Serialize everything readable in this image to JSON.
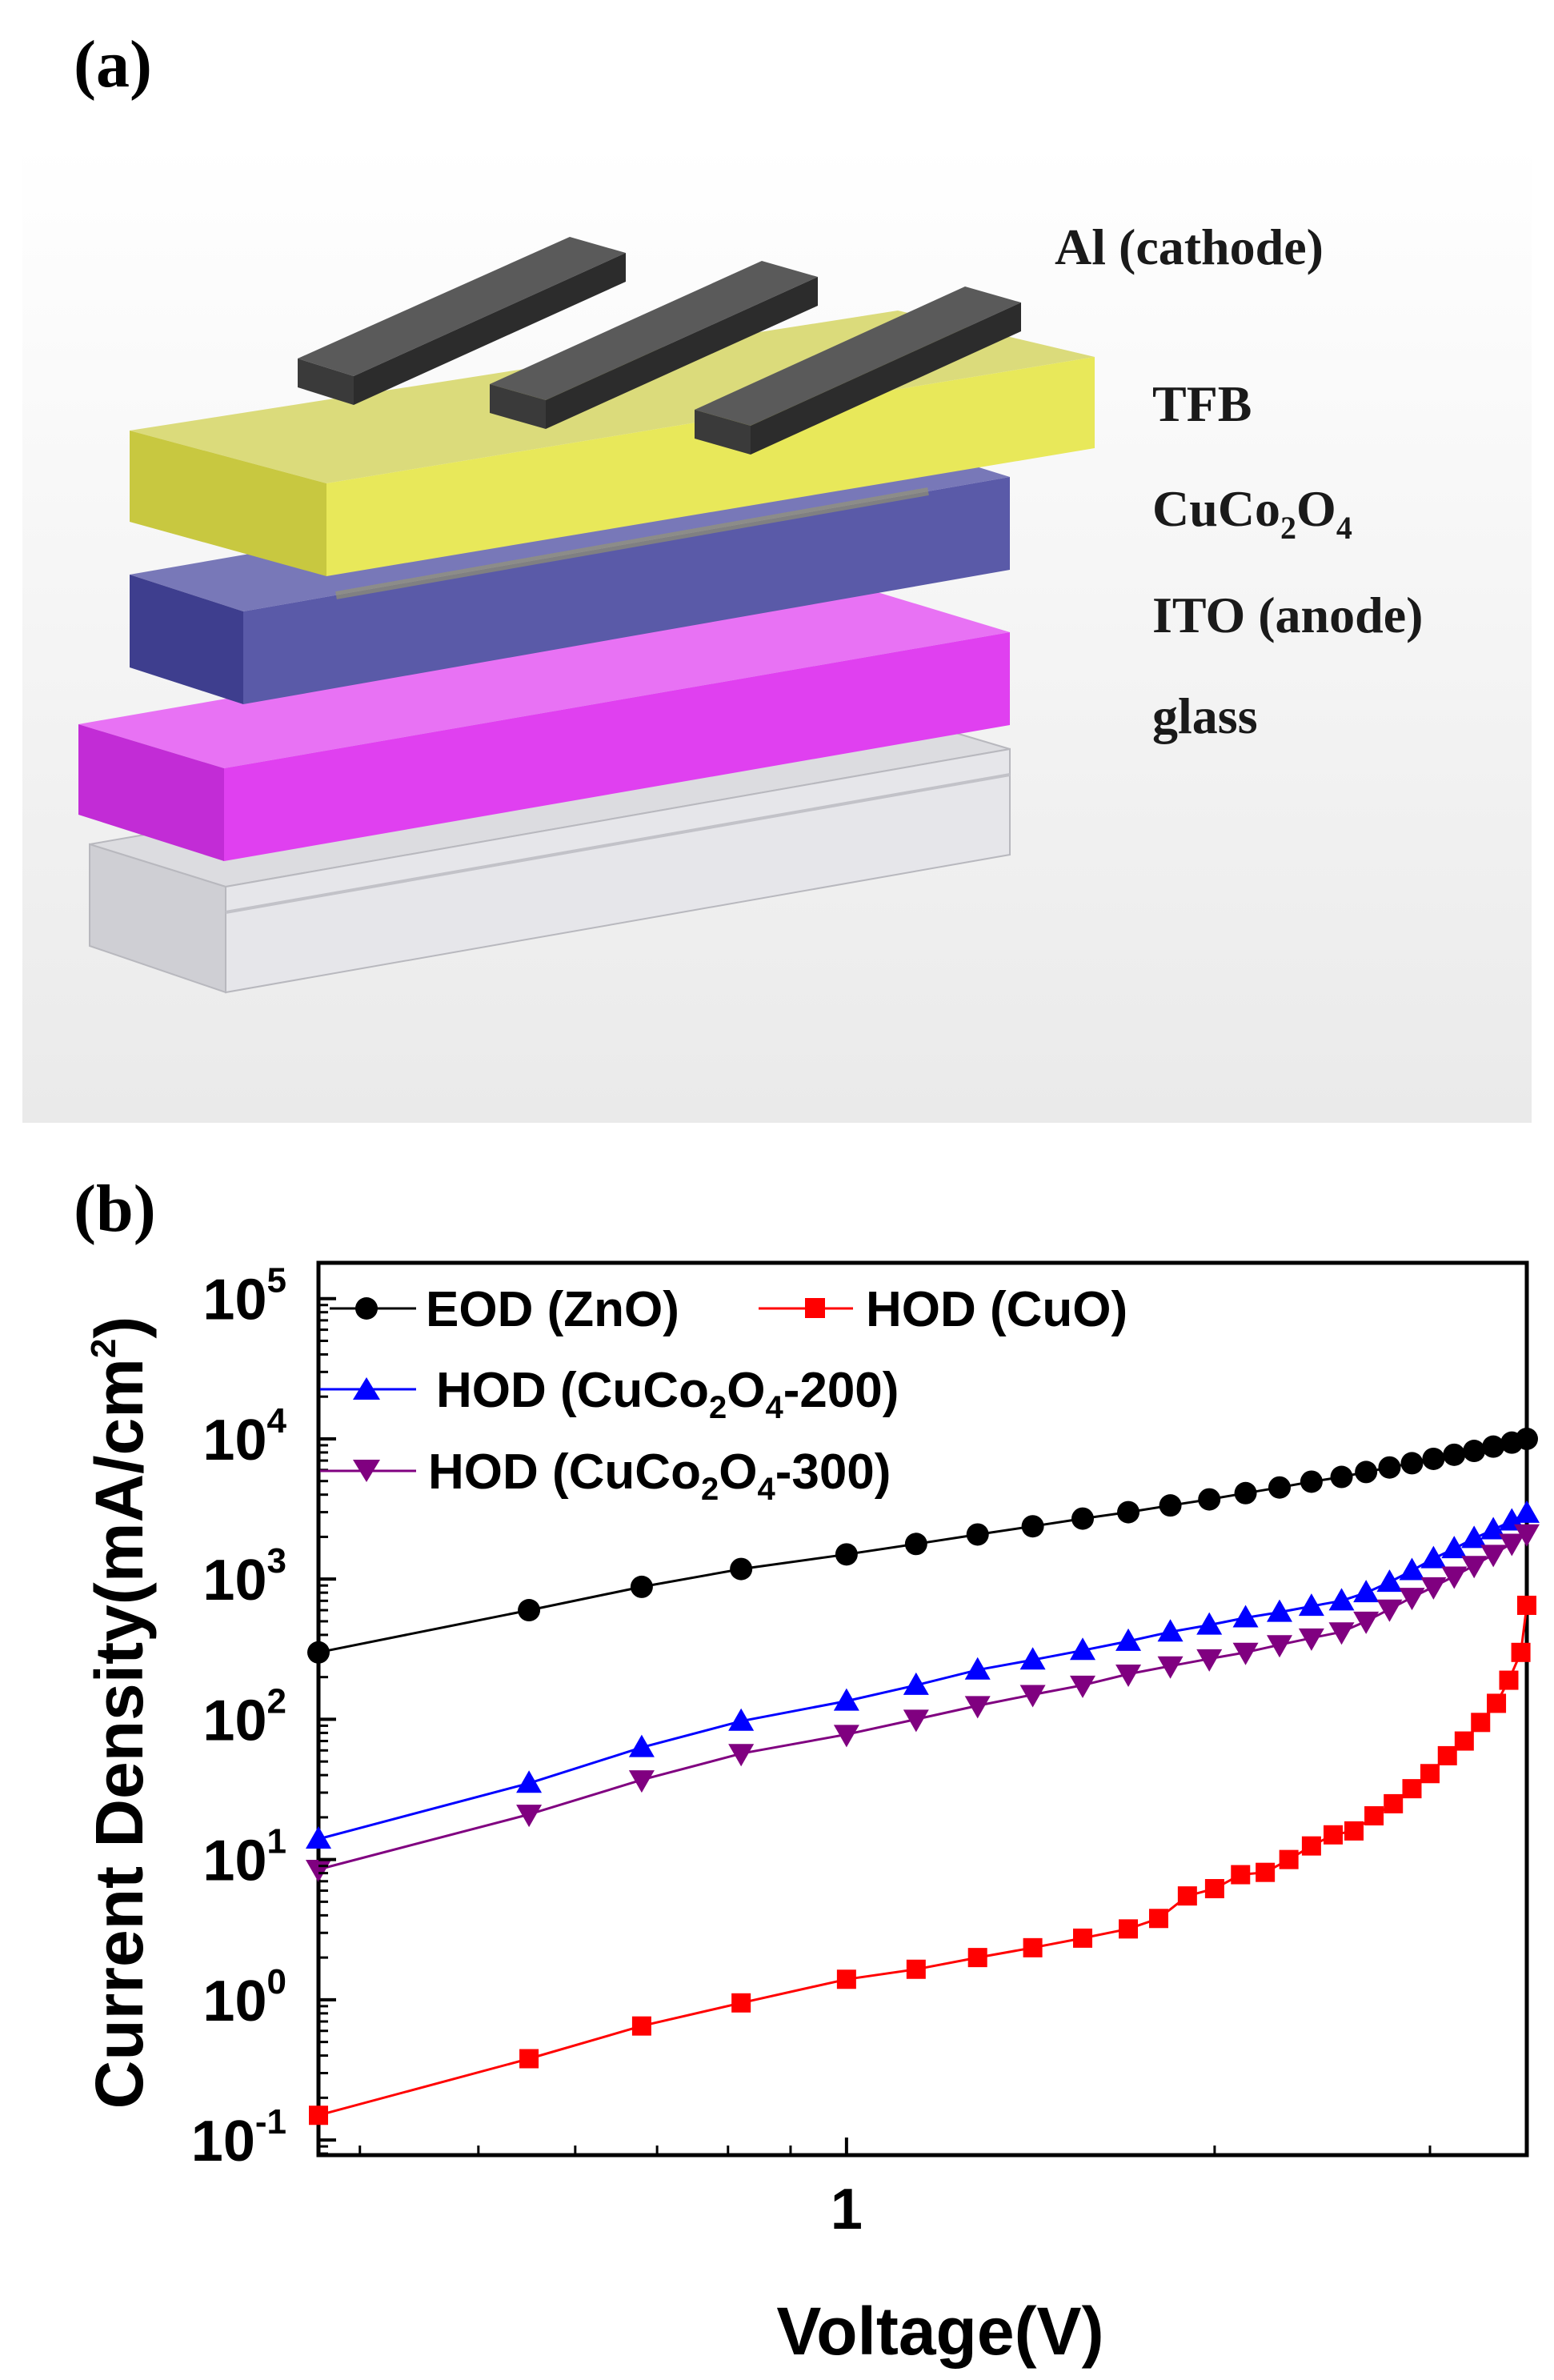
{
  "panels": {
    "a": {
      "tag": "(a)",
      "layers": [
        {
          "name": "Al (cathode)",
          "color": "#4a4a4a"
        },
        {
          "name": "TFB",
          "color": "#e8e85a"
        },
        {
          "name": "CuCo2O4",
          "color": "#5a5aa8",
          "label_main": "CuCo",
          "label_sub1": "2",
          "label_mid": "O",
          "label_sub2": "4"
        },
        {
          "name": "ITO (anode)",
          "color": "#e040f0"
        },
        {
          "name": "glass",
          "color": "#c8c8cc"
        }
      ]
    },
    "b": {
      "tag": "(b)"
    }
  },
  "chart_data": {
    "type": "line",
    "title": "",
    "xlabel": "Voltage(V)",
    "ylabel": "Current Density(mA/cm2)",
    "ylabel_main": "Current Density(mA/cm",
    "ylabel_exp": "2",
    "ylabel_close": ")",
    "x_scale": "log",
    "y_scale": "log",
    "xlim": [
      0.37,
      3.6
    ],
    "ylim": [
      0.078,
      180000
    ],
    "x_tick_labels": [
      {
        "value": 1,
        "label": "1"
      }
    ],
    "y_tick_labels": [
      {
        "value": 0.1,
        "base": "10",
        "exp": "-1"
      },
      {
        "value": 1,
        "base": "10",
        "exp": "0"
      },
      {
        "value": 10,
        "base": "10",
        "exp": "1"
      },
      {
        "value": 100,
        "base": "10",
        "exp": "2"
      },
      {
        "value": 1000,
        "base": "10",
        "exp": "3"
      },
      {
        "value": 10000,
        "base": "10",
        "exp": "4"
      },
      {
        "value": 100000,
        "base": "10",
        "exp": "5"
      }
    ],
    "legend": [
      {
        "series": 0,
        "text": "EOD (ZnO)"
      },
      {
        "series": 1,
        "text": "HOD (CuO)"
      },
      {
        "series": 2,
        "text_pre": "HOD (CuCo",
        "sub1": "2",
        "text_mid": "O",
        "sub2": "4",
        "text_post": "-200)"
      },
      {
        "series": 3,
        "text_pre": "HOD (CuCo",
        "sub1": "2",
        "text_mid": "O",
        "sub2": "4",
        "text_post": "-300)"
      }
    ],
    "series": [
      {
        "name": "EOD (ZnO)",
        "color": "#000000",
        "marker": "circle",
        "x": [
          0.37,
          0.55,
          0.68,
          0.82,
          1.0,
          1.14,
          1.28,
          1.42,
          1.56,
          1.7,
          1.84,
          1.98,
          2.12,
          2.26,
          2.4,
          2.54,
          2.66,
          2.78,
          2.9,
          3.02,
          3.14,
          3.26,
          3.38,
          3.5,
          3.6
        ],
        "y": [
          300,
          600,
          880,
          1180,
          1500,
          1780,
          2080,
          2380,
          2700,
          3000,
          3350,
          3700,
          4100,
          4500,
          4950,
          5350,
          5800,
          6250,
          6700,
          7200,
          7700,
          8200,
          8800,
          9400,
          10000
        ]
      },
      {
        "name": "HOD (CuO)",
        "color": "#ff0000",
        "marker": "square",
        "x": [
          0.37,
          0.55,
          0.68,
          0.82,
          1.0,
          1.14,
          1.28,
          1.42,
          1.56,
          1.7,
          1.8,
          1.9,
          2.0,
          2.1,
          2.2,
          2.3,
          2.4,
          2.5,
          2.6,
          2.7,
          2.8,
          2.9,
          3.0,
          3.1,
          3.2,
          3.3,
          3.4,
          3.48,
          3.56,
          3.6
        ],
        "y": [
          0.15,
          0.38,
          0.65,
          0.95,
          1.4,
          1.65,
          2.0,
          2.35,
          2.75,
          3.2,
          3.8,
          5.5,
          6.2,
          7.8,
          8.1,
          10.0,
          12.5,
          15.0,
          16.0,
          20.5,
          25.0,
          32.0,
          41.0,
          55.0,
          70.0,
          95.0,
          130.0,
          190.0,
          300.0,
          650.0
        ]
      },
      {
        "name": "HOD (CuCo2O4-200)",
        "color": "#0000ff",
        "marker": "triangle-up",
        "x": [
          0.37,
          0.55,
          0.68,
          0.82,
          1.0,
          1.14,
          1.28,
          1.42,
          1.56,
          1.7,
          1.84,
          1.98,
          2.12,
          2.26,
          2.4,
          2.54,
          2.66,
          2.78,
          2.9,
          3.02,
          3.14,
          3.26,
          3.38,
          3.5,
          3.6
        ],
        "y": [
          14,
          35,
          63,
          97,
          135,
          175,
          225,
          265,
          310,
          360,
          420,
          470,
          530,
          580,
          640,
          700,
          800,
          950,
          1150,
          1400,
          1650,
          1950,
          2250,
          2600,
          2950
        ]
      },
      {
        "name": "HOD (CuCo2O4-300)",
        "color": "#800080",
        "marker": "triangle-down",
        "x": [
          0.37,
          0.55,
          0.68,
          0.82,
          1.0,
          1.14,
          1.28,
          1.42,
          1.56,
          1.7,
          1.84,
          1.98,
          2.12,
          2.26,
          2.4,
          2.54,
          2.66,
          2.78,
          2.9,
          3.02,
          3.14,
          3.26,
          3.38,
          3.5,
          3.6
        ],
        "y": [
          8.5,
          21,
          37,
          57,
          78,
          100,
          125,
          150,
          175,
          210,
          240,
          270,
          300,
          340,
          380,
          420,
          500,
          610,
          740,
          880,
          1050,
          1250,
          1500,
          1800,
          2100
        ]
      }
    ]
  }
}
